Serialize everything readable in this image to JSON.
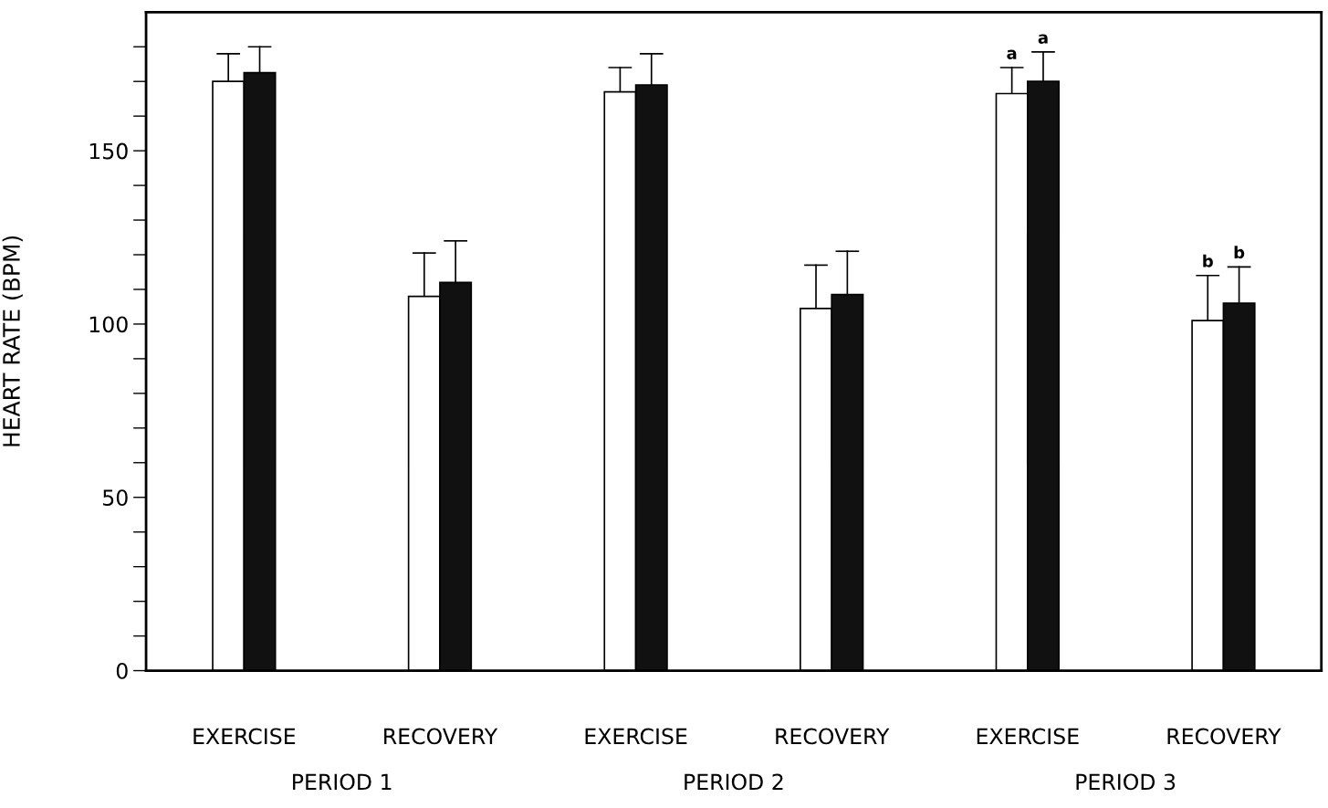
{
  "chart_data": {
    "type": "bar",
    "ylabel": "HEART RATE (BPM)",
    "categories": [
      "EXERCISE",
      "RECOVERY",
      "EXERCISE",
      "RECOVERY",
      "EXERCISE",
      "RECOVERY"
    ],
    "series": [
      {
        "color": "#ffffff",
        "values": [
          170,
          108,
          167,
          104.5,
          166.5,
          101
        ],
        "errors": [
          [
            170,
            178
          ],
          [
            108,
            120.5
          ],
          [
            167,
            174
          ],
          [
            104.5,
            117
          ],
          [
            166.5,
            174
          ],
          [
            101,
            114
          ]
        ]
      },
      {
        "color": "#111111",
        "values": [
          172.5,
          112,
          169,
          108.5,
          170,
          106
        ],
        "errors": [
          [
            172.5,
            180
          ],
          [
            112,
            124
          ],
          [
            169,
            178
          ],
          [
            108.5,
            121
          ],
          [
            170,
            178.5
          ],
          [
            106,
            116.5
          ]
        ]
      }
    ],
    "ylim": [
      0,
      190
    ],
    "yticks": [
      0,
      {
        "value": 10,
        "label": null
      },
      {
        "value": 20,
        "label": null
      },
      {
        "value": 30,
        "label": null
      },
      {
        "value": 40,
        "label": null
      },
      50,
      {
        "value": 60,
        "label": null
      },
      {
        "value": 70,
        "label": null
      },
      {
        "value": 80,
        "label": null
      },
      {
        "value": 90,
        "label": null
      },
      100,
      {
        "value": 110,
        "label": null
      },
      {
        "value": 120,
        "label": null
      },
      {
        "value": 130,
        "label": null
      },
      {
        "value": 140,
        "label": null
      },
      150,
      {
        "value": 160,
        "label": null
      },
      {
        "value": 170,
        "label": null
      },
      {
        "value": 180,
        "label": null
      }
    ],
    "annotations": [
      "PERIOD 1",
      "PERIOD 2",
      "PERIOD 3",
      "a",
      "a",
      "b",
      "b"
    ],
    "grid": false,
    "legend": false
  }
}
